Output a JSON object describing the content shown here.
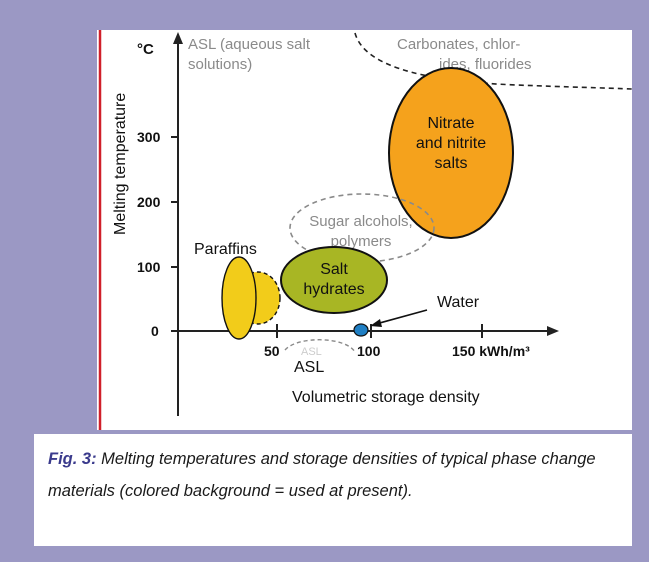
{
  "figure": {
    "y_axis_title": "Melting temperature",
    "y_unit": "°C",
    "x_axis_title": "Volumetric storage density",
    "y_ticks": [
      "0",
      "100",
      "200",
      "300"
    ],
    "x_ticks": [
      "50",
      "100",
      "150 kWh/m³"
    ],
    "regions": {
      "asl_top": "ASL (aqueous salt",
      "asl_top_2": "solutions)",
      "carbonates_1": "Carbonates, chlor-",
      "carbonates_2": "ides, fluorides",
      "nitrate_1": "Nitrate",
      "nitrate_2": "and nitrite",
      "nitrate_3": "salts",
      "sugar_1": "Sugar alcohols,",
      "sugar_2": "polymers",
      "salt_1": "Salt",
      "salt_2": "hydrates",
      "paraffins": "Paraffins",
      "water": "Water",
      "asl_faint": "ASL",
      "asl_bottom": "ASL"
    },
    "colors": {
      "axis_red": "#d0202a",
      "nitrate_fill": "#f5a21c",
      "salt_fill": "#a8b624",
      "paraffin_fill": "#f2cc1a",
      "water_fill": "#1f7fc4",
      "dashed_gray": "#8a8a8a",
      "background": "#9b98c4"
    }
  },
  "caption": {
    "label": "Fig. 3:",
    "text": " Melting temperatures and storage densities of typical phase change materials (colored background = used at present)."
  }
}
